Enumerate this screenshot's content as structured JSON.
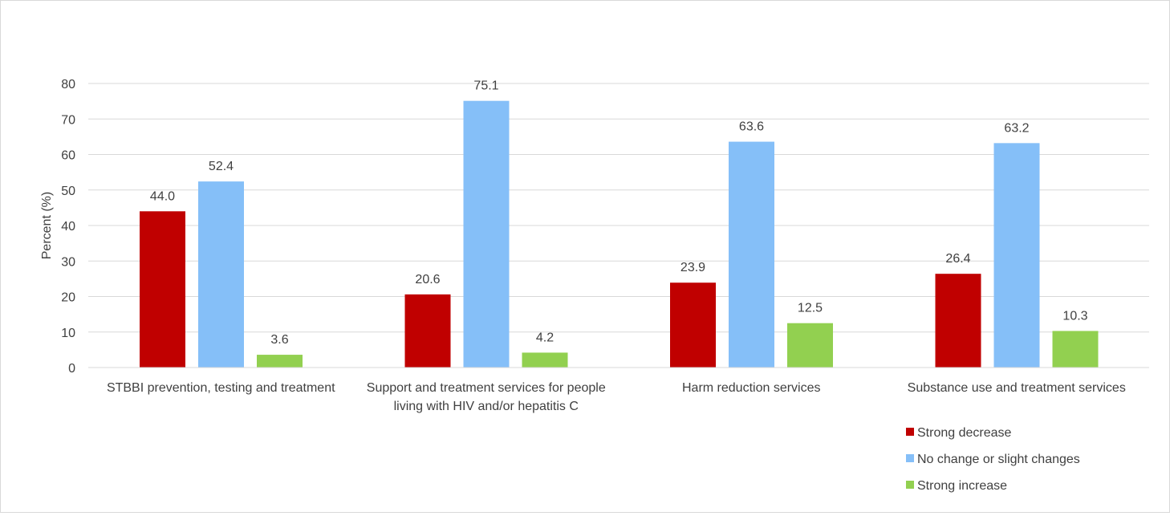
{
  "chart_data": {
    "type": "bar",
    "title": "",
    "ylabel": "Percent (%)",
    "xlabel": "",
    "ylim": [
      0,
      80
    ],
    "yticks": [
      0,
      10,
      20,
      30,
      40,
      50,
      60,
      70,
      80
    ],
    "grid": true,
    "legend_position": "bottom-right",
    "categories": [
      [
        "STBBI prevention, testing and treatment"
      ],
      [
        "Support and treatment services for people",
        "living with HIV and/or hepatitis C"
      ],
      [
        "Harm reduction services"
      ],
      [
        "Substance use and treatment services"
      ]
    ],
    "series": [
      {
        "name": "Strong decrease",
        "color": "#c00000",
        "values": [
          44.0,
          20.6,
          23.9,
          26.4
        ]
      },
      {
        "name": "No change or slight changes",
        "color": "#85bff8",
        "values": [
          52.4,
          75.1,
          63.6,
          63.2
        ]
      },
      {
        "name": "Strong increase",
        "color": "#92d050",
        "values": [
          3.6,
          4.2,
          12.5,
          10.3
        ]
      }
    ],
    "value_decimals": 1
  },
  "colors": {
    "gridline": "#d9d9d9",
    "axis_line": "#d9d9d9",
    "text": "#404040"
  }
}
